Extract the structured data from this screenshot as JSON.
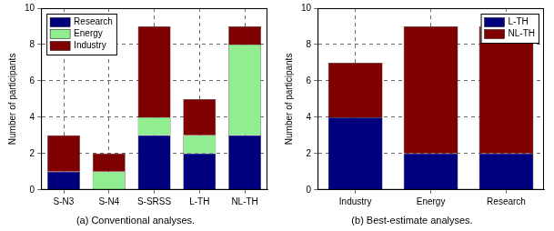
{
  "chart_data": [
    {
      "type": "bar",
      "title": "(a) Conventional analyses.",
      "categories": [
        "S-N3",
        "S-N4",
        "S-SRSS",
        "L-TH",
        "NL-TH"
      ],
      "series": [
        {
          "name": "Research",
          "color": "#00007f",
          "values": [
            1,
            0,
            3,
            2,
            3
          ]
        },
        {
          "name": "Energy",
          "color": "#90ee90",
          "values": [
            0,
            1,
            1,
            1,
            5
          ]
        },
        {
          "name": "Industry",
          "color": "#7f0000",
          "values": [
            2,
            1,
            5,
            2,
            1
          ]
        }
      ],
      "ylabel": "Number of participants",
      "ylim": [
        0,
        10
      ],
      "yticks": [
        0,
        2,
        4,
        6,
        8,
        10
      ],
      "grid": true,
      "stacked": true,
      "legend": "top-left"
    },
    {
      "type": "bar",
      "title": "(b) Best-estimate analyses.",
      "categories": [
        "Industry",
        "Energy",
        "Research"
      ],
      "series": [
        {
          "name": "L-TH",
          "color": "#00007f",
          "values": [
            4,
            2,
            2
          ]
        },
        {
          "name": "NL-TH",
          "color": "#7f0000",
          "values": [
            3,
            7,
            7
          ]
        }
      ],
      "ylabel": "Number of participants",
      "ylim": [
        0,
        10
      ],
      "yticks": [
        0,
        2,
        4,
        6,
        8,
        10
      ],
      "grid": true,
      "stacked": true,
      "legend": "top-right"
    }
  ]
}
